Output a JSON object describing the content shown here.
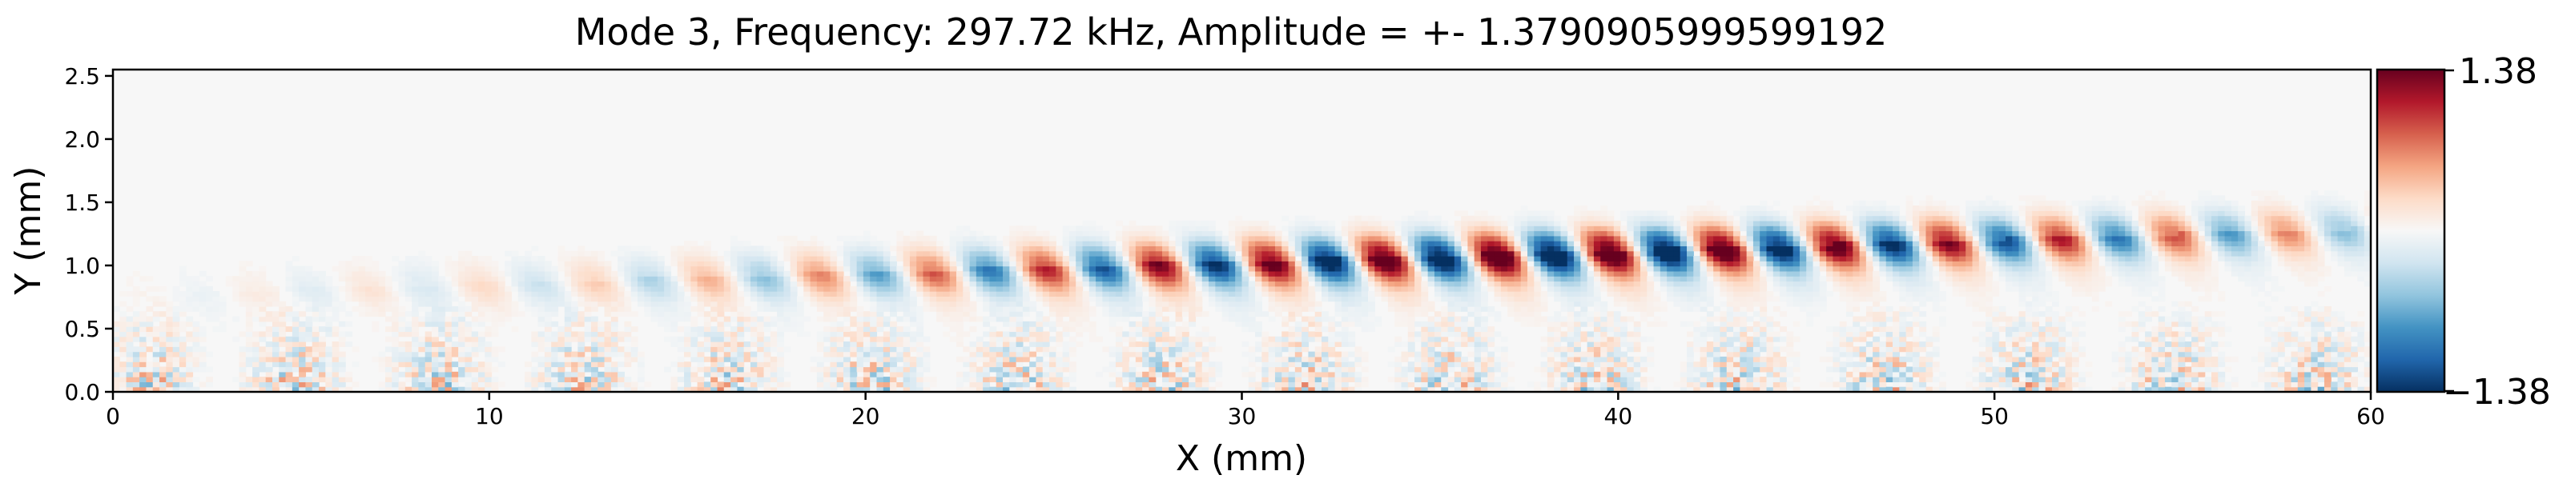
{
  "chart_data": {
    "type": "heatmap",
    "title": "Mode 3, Frequency: 297.72 kHz, Amplitude = +- 1.3790905999599192",
    "xlabel": "X (mm)",
    "ylabel": "Y (mm)",
    "xlim": [
      0,
      60
    ],
    "ylim": [
      0,
      2.55
    ],
    "x_ticks": [
      0,
      10,
      20,
      30,
      40,
      50,
      60
    ],
    "y_ticks": [
      0.0,
      0.5,
      1.0,
      1.5,
      2.0,
      2.5
    ],
    "x_tick_labels": [
      "0",
      "10",
      "20",
      "30",
      "40",
      "50",
      "60"
    ],
    "y_tick_labels": [
      "0.0",
      "0.5",
      "1.0",
      "1.5",
      "2.0",
      "2.5"
    ],
    "colormap": "RdBu_r",
    "colorbar": {
      "max_label": "1.38",
      "min_label": "−1.38",
      "vmin": -1.38,
      "vmax": 1.38,
      "colors": [
        "#053061",
        "#2166ac",
        "#4393c3",
        "#92c5de",
        "#d1e5f0",
        "#f7f7f7",
        "#fddbc7",
        "#f4a582",
        "#d6604d",
        "#b2182b",
        "#67001f"
      ]
    },
    "wave": {
      "wavelength_mm": 3.0,
      "crest_y_start_mm": 0.78,
      "crest_y_end_mm": 1.3,
      "peak_x_mm": 38.5,
      "peak_amplitude": 1.38
    },
    "grid": false
  }
}
